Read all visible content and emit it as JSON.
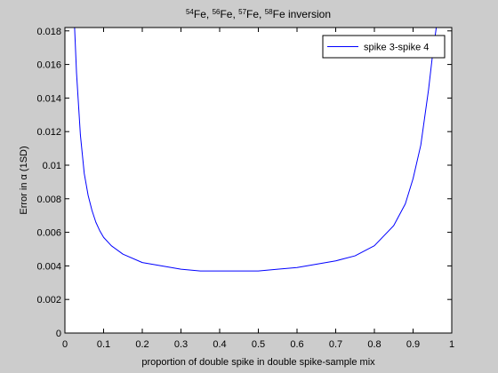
{
  "chart_data": {
    "type": "line",
    "title": {
      "parts": [
        {
          "sup": "54",
          "text": "Fe, "
        },
        {
          "sup": "56",
          "text": "Fe, "
        },
        {
          "sup": "57",
          "text": "Fe, "
        },
        {
          "sup": "58",
          "text": "Fe inversion"
        }
      ]
    },
    "xlabel": "proportion of double spike in double spike-sample mix",
    "ylabel": "Error in α (1SD)",
    "xlim": [
      0,
      1
    ],
    "ylim": [
      0,
      0.0182
    ],
    "xticks": [
      0,
      0.1,
      0.2,
      0.3,
      0.4,
      0.5,
      0.6,
      0.7,
      0.8,
      0.9,
      1
    ],
    "xtick_labels": [
      "0",
      "0.1",
      "0.2",
      "0.3",
      "0.4",
      "0.5",
      "0.6",
      "0.7",
      "0.8",
      "0.9",
      "1"
    ],
    "yticks": [
      0,
      0.002,
      0.004,
      0.006,
      0.008,
      0.01,
      0.012,
      0.014,
      0.016,
      0.018
    ],
    "ytick_labels": [
      "0",
      "0.002",
      "0.004",
      "0.006",
      "0.008",
      "0.01",
      "0.012",
      "0.014",
      "0.016",
      "0.018"
    ],
    "grid": false,
    "legend": {
      "position": "top-right"
    },
    "series": [
      {
        "name": "spike 3-spike 4",
        "color": "#0000ff",
        "x": [
          0.025,
          0.03,
          0.04,
          0.05,
          0.06,
          0.07,
          0.08,
          0.09,
          0.1,
          0.12,
          0.15,
          0.2,
          0.25,
          0.3,
          0.35,
          0.4,
          0.45,
          0.5,
          0.55,
          0.6,
          0.65,
          0.7,
          0.75,
          0.8,
          0.85,
          0.88,
          0.9,
          0.92,
          0.94,
          0.95,
          0.96
        ],
        "values": [
          0.0182,
          0.0155,
          0.0118,
          0.0095,
          0.0082,
          0.0073,
          0.0066,
          0.0061,
          0.0057,
          0.0052,
          0.0047,
          0.0042,
          0.004,
          0.0038,
          0.0037,
          0.0037,
          0.0037,
          0.0037,
          0.0038,
          0.0039,
          0.0041,
          0.0043,
          0.0046,
          0.0052,
          0.0064,
          0.0077,
          0.0092,
          0.0112,
          0.0145,
          0.0165,
          0.0182
        ]
      }
    ]
  }
}
